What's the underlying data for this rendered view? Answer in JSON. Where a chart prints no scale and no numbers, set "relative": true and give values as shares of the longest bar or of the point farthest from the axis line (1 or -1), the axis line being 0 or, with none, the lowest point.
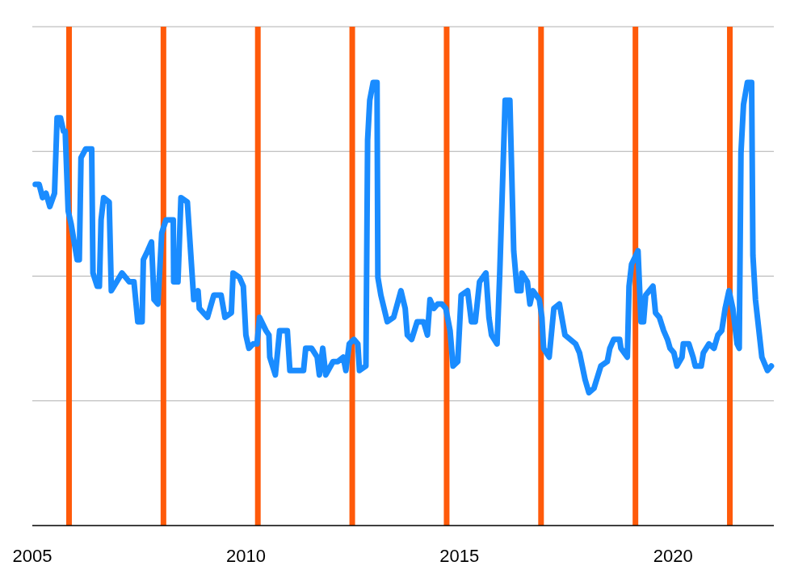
{
  "chart_data": {
    "type": "line",
    "relative": true,
    "grid": true,
    "xlim": [
      2005,
      2022.36
    ],
    "xticks": [
      2005,
      2010,
      2015,
      2020
    ],
    "ref_lines": [
      {
        "axis": "x",
        "value": 2005.86,
        "color": "#ff5a0a"
      },
      {
        "axis": "x",
        "value": 2008.07,
        "color": "#ff5a0a"
      },
      {
        "axis": "x",
        "value": 2010.28,
        "color": "#ff5a0a"
      },
      {
        "axis": "x",
        "value": 2012.49,
        "color": "#ff5a0a"
      },
      {
        "axis": "x",
        "value": 2014.7,
        "color": "#ff5a0a"
      },
      {
        "axis": "x",
        "value": 2016.91,
        "color": "#ff5a0a"
      },
      {
        "axis": "x",
        "value": 2019.12,
        "color": "#ff5a0a"
      },
      {
        "axis": "x",
        "value": 2021.33,
        "color": "#ff5a0a"
      }
    ],
    "series": [
      {
        "color": "#1a8cff",
        "x": [
          2005.07,
          2005.16,
          2005.24,
          2005.32,
          2005.41,
          2005.52,
          2005.58,
          2005.66,
          2005.73,
          2005.77,
          2005.84,
          2005.91,
          2006.05,
          2006.1,
          2006.14,
          2006.25,
          2006.39,
          2006.42,
          2006.52,
          2006.57,
          2006.61,
          2006.67,
          2006.8,
          2006.85,
          2007.1,
          2007.27,
          2007.38,
          2007.47,
          2007.57,
          2007.6,
          2007.7,
          2007.79,
          2007.85,
          2007.94,
          2008.03,
          2008.13,
          2008.3,
          2008.31,
          2008.41,
          2008.48,
          2008.63,
          2008.78,
          2008.88,
          2008.91,
          2009.1,
          2009.25,
          2009.42,
          2009.51,
          2009.66,
          2009.7,
          2009.85,
          2009.94,
          2010.0,
          2010.07,
          2010.17,
          2010.26,
          2010.32,
          2010.47,
          2010.54,
          2010.56,
          2010.69,
          2010.79,
          2010.97,
          2011.03,
          2011.35,
          2011.4,
          2011.54,
          2011.67,
          2011.72,
          2011.8,
          2011.87,
          2012.04,
          2012.15,
          2012.28,
          2012.34,
          2012.42,
          2012.53,
          2012.62,
          2012.66,
          2012.81,
          2012.85,
          2012.9,
          2012.98,
          2013.07,
          2013.09,
          2013.16,
          2013.31,
          2013.46,
          2013.63,
          2013.73,
          2013.78,
          2013.88,
          2014.01,
          2014.16,
          2014.25,
          2014.31,
          2014.4,
          2014.49,
          2014.59,
          2014.68,
          2014.78,
          2014.85,
          2014.96,
          2015.04,
          2015.19,
          2015.28,
          2015.37,
          2015.47,
          2015.62,
          2015.69,
          2015.75,
          2015.88,
          2015.94,
          2016.07,
          2016.18,
          2016.27,
          2016.35,
          2016.44,
          2016.46,
          2016.59,
          2016.65,
          2016.72,
          2016.87,
          2016.93,
          2016.97,
          2017.1,
          2017.21,
          2017.34,
          2017.47,
          2017.72,
          2017.81,
          2017.94,
          2018.03,
          2018.15,
          2018.31,
          2018.46,
          2018.52,
          2018.61,
          2018.75,
          2018.78,
          2018.93,
          2018.97,
          2019.03,
          2019.18,
          2019.25,
          2019.31,
          2019.36,
          2019.53,
          2019.59,
          2019.68,
          2019.78,
          2019.87,
          2019.93,
          2020.02,
          2020.09,
          2020.21,
          2020.24,
          2020.37,
          2020.47,
          2020.52,
          2020.66,
          2020.71,
          2020.84,
          2020.96,
          2021.05,
          2021.14,
          2021.22,
          2021.31,
          2021.4,
          2021.5,
          2021.55,
          2021.59,
          2021.65,
          2021.74,
          2021.84,
          2021.87,
          2021.93,
          2022.08,
          2022.21,
          2022.3
        ],
        "values": [
          0.77,
          0.77,
          0.74,
          0.75,
          0.72,
          0.75,
          0.92,
          0.92,
          0.89,
          0.89,
          0.71,
          0.68,
          0.6,
          0.6,
          0.83,
          0.85,
          0.85,
          0.57,
          0.54,
          0.54,
          0.69,
          0.74,
          0.73,
          0.53,
          0.57,
          0.55,
          0.55,
          0.46,
          0.46,
          0.6,
          0.62,
          0.64,
          0.51,
          0.5,
          0.66,
          0.69,
          0.69,
          0.55,
          0.55,
          0.74,
          0.73,
          0.51,
          0.53,
          0.49,
          0.47,
          0.52,
          0.52,
          0.47,
          0.48,
          0.57,
          0.56,
          0.54,
          0.43,
          0.4,
          0.41,
          0.41,
          0.47,
          0.44,
          0.43,
          0.38,
          0.34,
          0.44,
          0.44,
          0.35,
          0.35,
          0.4,
          0.4,
          0.38,
          0.34,
          0.4,
          0.34,
          0.37,
          0.37,
          0.38,
          0.35,
          0.41,
          0.42,
          0.41,
          0.35,
          0.36,
          0.87,
          0.96,
          1,
          1,
          0.56,
          0.52,
          0.46,
          0.47,
          0.53,
          0.49,
          0.43,
          0.42,
          0.46,
          0.46,
          0.43,
          0.51,
          0.49,
          0.5,
          0.5,
          0.49,
          0.44,
          0.36,
          0.37,
          0.52,
          0.53,
          0.46,
          0.46,
          0.55,
          0.57,
          0.47,
          0.43,
          0.41,
          0.56,
          0.96,
          0.96,
          0.62,
          0.53,
          0.53,
          0.57,
          0.55,
          0.5,
          0.53,
          0.51,
          0.47,
          0.4,
          0.38,
          0.49,
          0.5,
          0.43,
          0.41,
          0.39,
          0.33,
          0.3,
          0.31,
          0.36,
          0.37,
          0.4,
          0.42,
          0.42,
          0.4,
          0.38,
          0.54,
          0.59,
          0.62,
          0.46,
          0.46,
          0.52,
          0.54,
          0.48,
          0.47,
          0.44,
          0.42,
          0.4,
          0.39,
          0.36,
          0.38,
          0.41,
          0.41,
          0.38,
          0.36,
          0.36,
          0.39,
          0.41,
          0.4,
          0.43,
          0.44,
          0.49,
          0.53,
          0.49,
          0.41,
          0.4,
          0.84,
          0.95,
          1,
          1,
          0.61,
          0.51,
          0.38,
          0.35,
          0.36
        ]
      }
    ]
  }
}
